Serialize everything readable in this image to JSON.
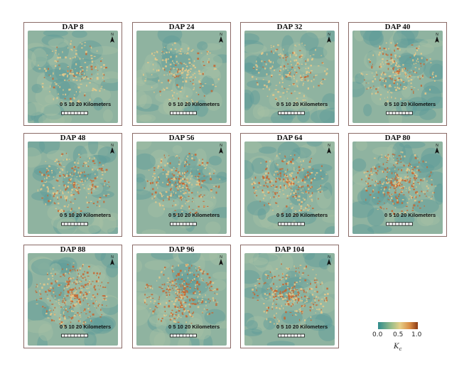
{
  "panels": [
    {
      "title": "DAP 8",
      "kc_intensity": 0.25
    },
    {
      "title": "DAP 24",
      "kc_intensity": 0.3
    },
    {
      "title": "DAP 32",
      "kc_intensity": 0.35
    },
    {
      "title": "DAP 40",
      "kc_intensity": 0.45
    },
    {
      "title": "DAP 48",
      "kc_intensity": 0.55
    },
    {
      "title": "DAP 56",
      "kc_intensity": 0.6
    },
    {
      "title": "DAP 64",
      "kc_intensity": 0.7
    },
    {
      "title": "DAP 80",
      "kc_intensity": 0.8
    },
    {
      "title": "DAP 88",
      "kc_intensity": 0.9
    },
    {
      "title": "DAP 96",
      "kc_intensity": 0.9
    },
    {
      "title": "DAP 104",
      "kc_intensity": 0.75
    }
  ],
  "scale_bar": {
    "label": "0  5 10   20 Kilometers"
  },
  "north_arrow": {
    "label": "N",
    "icon": "north-arrow-icon"
  },
  "legend": {
    "ticks": [
      "0.0",
      "0.5",
      "1.0"
    ],
    "title": "K",
    "title_subscript": "c",
    "colors": [
      "#2f8c8c",
      "#9fbf8a",
      "#e6cf88",
      "#d98b43",
      "#8b3a14"
    ]
  },
  "colors": {
    "background_low": "#5d9c98",
    "background_mid": "#8fb3a0",
    "hotspot_mid": "#e8c98a",
    "hotspot_high": "#c8642e",
    "panel_border": "#8a6a66"
  }
}
